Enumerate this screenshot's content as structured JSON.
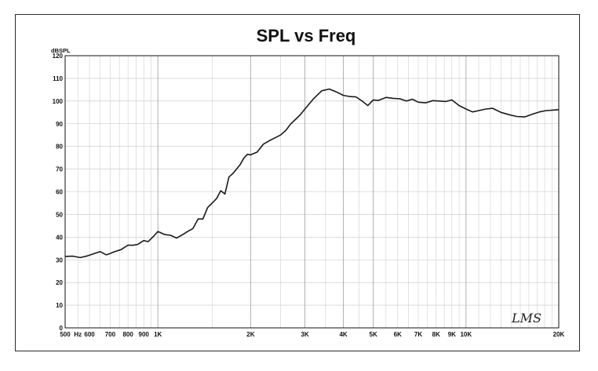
{
  "chart_data": {
    "type": "line",
    "title": "SPL vs Freq",
    "ylabel": "dBSPL",
    "xlabel": "",
    "x_scale": "log",
    "xlim": [
      500,
      20000
    ],
    "ylim": [
      0,
      120
    ],
    "grid": true,
    "y_ticks": [
      0,
      10,
      20,
      30,
      40,
      50,
      60,
      70,
      80,
      90,
      100,
      110,
      120
    ],
    "x_ticks": [
      {
        "value": 500,
        "label": "500"
      },
      {
        "value": 550,
        "label": "Hz"
      },
      {
        "value": 600,
        "label": "600"
      },
      {
        "value": 700,
        "label": "700"
      },
      {
        "value": 800,
        "label": "800"
      },
      {
        "value": 900,
        "label": "900"
      },
      {
        "value": 1000,
        "label": "1K"
      },
      {
        "value": 2000,
        "label": "2K"
      },
      {
        "value": 3000,
        "label": "3K"
      },
      {
        "value": 4000,
        "label": "4K"
      },
      {
        "value": 5000,
        "label": "5K"
      },
      {
        "value": 6000,
        "label": "6K"
      },
      {
        "value": 7000,
        "label": "7K"
      },
      {
        "value": 8000,
        "label": "8K"
      },
      {
        "value": 9000,
        "label": "9K"
      },
      {
        "value": 10000,
        "label": "10K"
      },
      {
        "value": 20000,
        "label": "20K"
      }
    ],
    "series": [
      {
        "x": [
          500,
          530,
          560,
          590,
          620,
          650,
          680,
          700,
          720,
          760,
          800,
          830,
          860,
          900,
          930,
          970,
          1000,
          1050,
          1100,
          1150,
          1200,
          1250,
          1300,
          1350,
          1400,
          1450,
          1500,
          1550,
          1600,
          1650,
          1700,
          1750,
          1800,
          1850,
          1900,
          1950,
          2000,
          2100,
          2200,
          2300,
          2400,
          2500,
          2600,
          2700,
          2800,
          2900,
          3000,
          3200,
          3400,
          3600,
          3800,
          4000,
          4200,
          4400,
          4600,
          4800,
          5000,
          5200,
          5500,
          5800,
          6100,
          6400,
          6700,
          7000,
          7400,
          7800,
          8200,
          8600,
          9000,
          9500,
          10000,
          10500,
          11000,
          11600,
          12200,
          13000,
          13800,
          14600,
          15500,
          16400,
          17300,
          18200,
          19100,
          20000
        ],
        "y": [
          31.5,
          31.6,
          31.0,
          31.7,
          32.7,
          33.6,
          32.2,
          32.8,
          33.5,
          34.5,
          36.5,
          36.4,
          36.8,
          38.5,
          38.0,
          40.5,
          42.5,
          41.2,
          40.8,
          39.6,
          41.0,
          42.5,
          43.8,
          48.0,
          48.0,
          53.0,
          55.0,
          57.0,
          60.5,
          59.0,
          66.5,
          68.0,
          70.0,
          72.0,
          74.8,
          76.5,
          76.3,
          77.5,
          81.0,
          82.5,
          83.8,
          85.0,
          87.0,
          90.0,
          92.0,
          94.0,
          96.5,
          101.0,
          104.5,
          105.3,
          104.0,
          102.5,
          102.0,
          101.8,
          100.0,
          98.0,
          100.5,
          100.3,
          101.6,
          101.2,
          101.0,
          100.0,
          100.8,
          99.5,
          99.2,
          100.2,
          100.0,
          99.8,
          100.5,
          98.0,
          96.5,
          95.2,
          95.8,
          96.5,
          96.8,
          95.0,
          94.0,
          93.2,
          93.0,
          94.2,
          95.2,
          95.8,
          96.0,
          96.2
        ]
      }
    ],
    "logo": "LMS"
  }
}
